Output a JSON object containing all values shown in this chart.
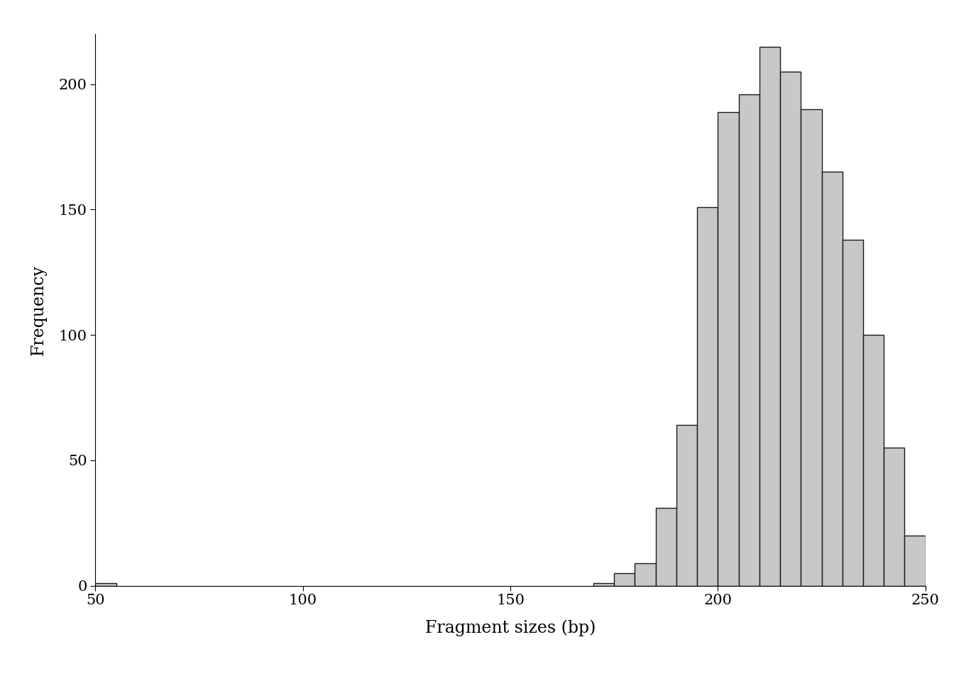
{
  "title": "",
  "xlabel": "Fragment sizes (bp)",
  "ylabel": "Frequency",
  "xlim": [
    50,
    250
  ],
  "ylim": [
    0,
    220
  ],
  "yticks": [
    0,
    50,
    100,
    150,
    200
  ],
  "xticks": [
    50,
    100,
    150,
    200,
    250
  ],
  "bar_color": "#c8c8c8",
  "bar_edgecolor": "#1a1a1a",
  "background_color": "#ffffff",
  "xlabel_fontsize": 17,
  "ylabel_fontsize": 17,
  "tick_fontsize": 15,
  "linewidth": 1.0,
  "bins_left": [
    50,
    55,
    60,
    65,
    70,
    75,
    80,
    85,
    90,
    95,
    100,
    105,
    110,
    115,
    120,
    125,
    130,
    135,
    140,
    145,
    150,
    155,
    160,
    165,
    170,
    175,
    180,
    185,
    190,
    195,
    200,
    205,
    210,
    215,
    220,
    225,
    230,
    235,
    240,
    245
  ],
  "heights": [
    1,
    0,
    0,
    0,
    0,
    0,
    0,
    0,
    0,
    0,
    0,
    0,
    0,
    0,
    0,
    0,
    0,
    0,
    0,
    0,
    0,
    0,
    0,
    0,
    1,
    5,
    9,
    31,
    64,
    151,
    189,
    196,
    215,
    205,
    190,
    165,
    138,
    100,
    55,
    20
  ],
  "bin_width": 5,
  "font_family": "DejaVu Serif"
}
